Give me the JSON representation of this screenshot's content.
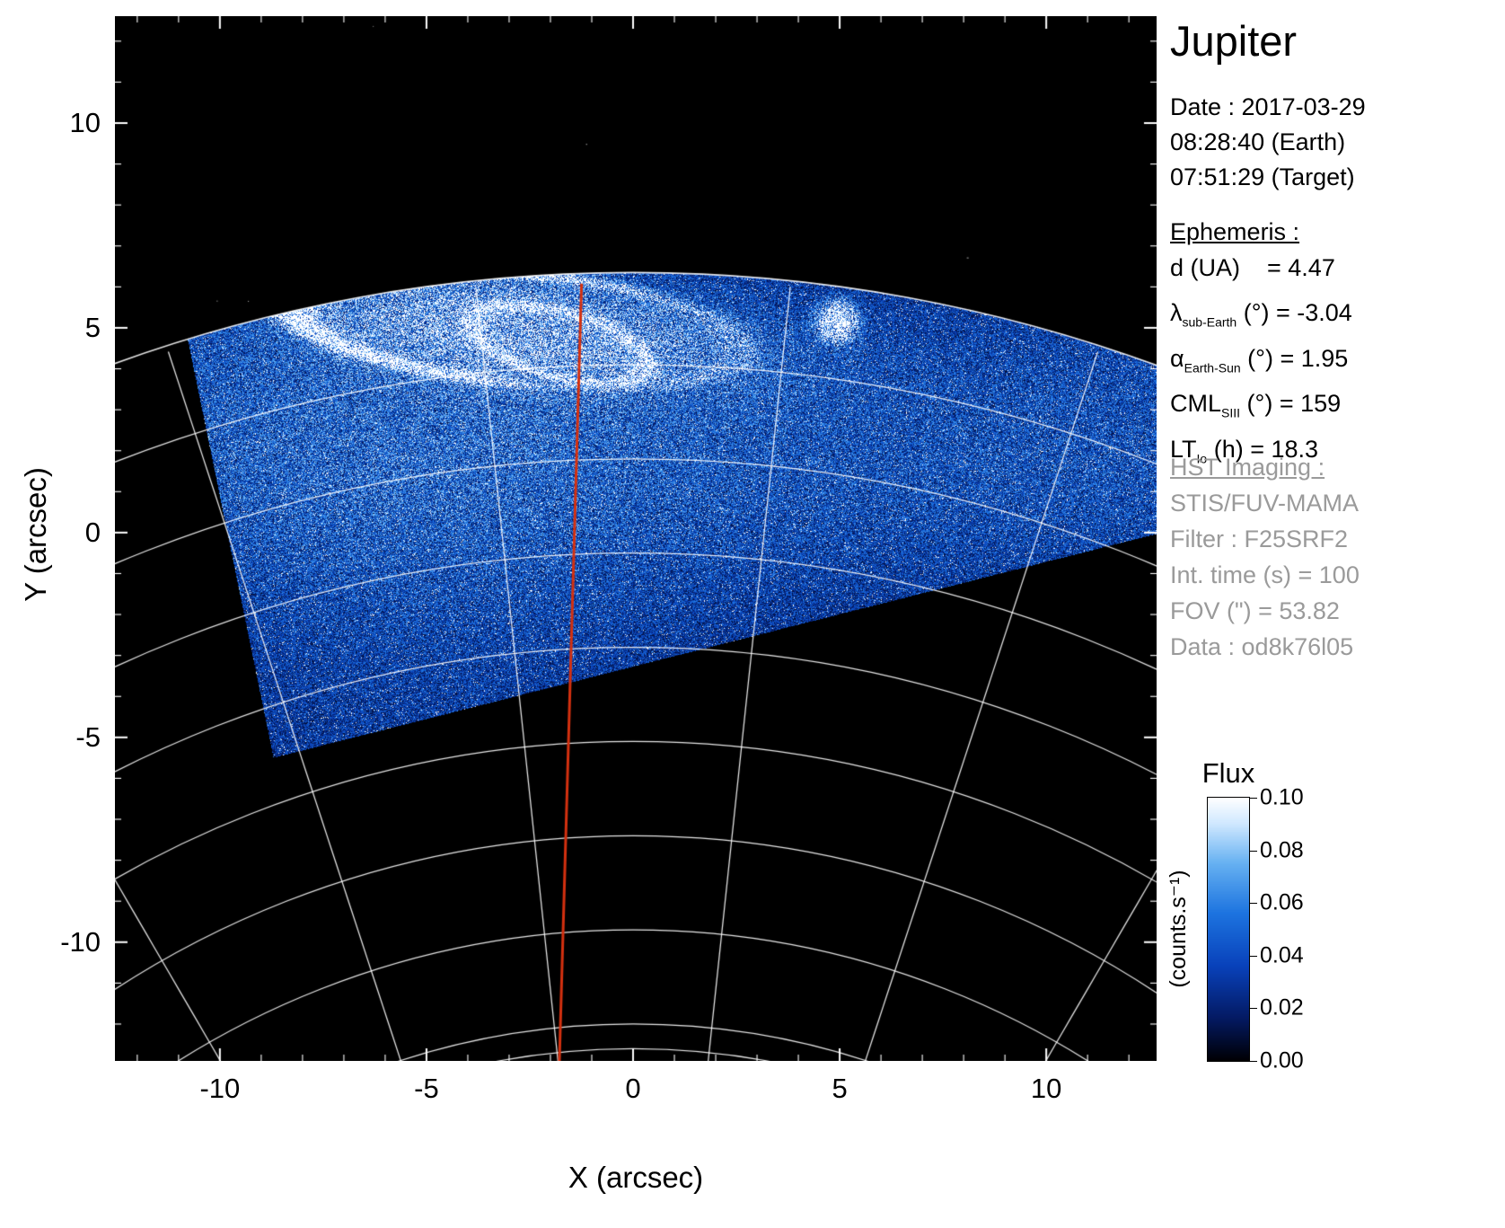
{
  "title": "Jupiter",
  "info_panel": {
    "date": "Date : 2017-03-29",
    "time_earth": "08:28:40 (Earth)",
    "time_target": "07:51:29 (Target)",
    "ephemeris_heading": "Ephemeris :",
    "ephemeris": [
      {
        "pre": "d (UA)",
        "sub": "",
        "post": "    = 4.47"
      },
      {
        "pre": "λ",
        "sub": "sub-Earth",
        "post": " (°) = -3.04"
      },
      {
        "pre": "α",
        "sub": "Earth-Sun",
        "post": " (°) = 1.95"
      },
      {
        "pre": "CML",
        "sub": "SIII",
        "post": " (°) = 159"
      },
      {
        "pre": "LT",
        "sub": "Io",
        "post": " (h) = 18.3"
      }
    ],
    "hst_heading": "HST Imaging :",
    "hst_lines": [
      "STIS/FUV-MAMA",
      "Filter : F25SRF2",
      "Int. time (s) = 100",
      "FOV (\") = 53.82",
      "Data : od8k76l05"
    ]
  },
  "chart_data": {
    "type": "heatmap",
    "title": "Jupiter",
    "xlabel": "X (arcsec)",
    "ylabel": "Y (arcsec)",
    "xlim": [
      -12.54,
      12.67
    ],
    "ylim": [
      -12.9,
      12.61
    ],
    "xticks": [
      -10,
      -5,
      0,
      5,
      10
    ],
    "yticks": [
      -10,
      -5,
      0,
      5,
      10
    ],
    "grid": false,
    "colorbar": {
      "title": "Flux",
      "units": "(counts.s⁻¹)",
      "ticks": [
        "0.10",
        "0.08",
        "0.06",
        "0.04",
        "0.02",
        "0.00"
      ],
      "vmin": 0.0,
      "vmax": 0.1,
      "stops": [
        [
          0,
          "#000005"
        ],
        [
          0.16,
          "#041a63"
        ],
        [
          0.36,
          "#0942bb"
        ],
        [
          0.56,
          "#1d74e0"
        ],
        [
          0.75,
          "#66b1f2"
        ],
        [
          0.9,
          "#cfe8ff"
        ],
        [
          1,
          "#ffffff"
        ]
      ]
    },
    "image": {
      "description": "HST/STIS far-UV image of Jupiter's north polar aurora: blue speckled FUV dayglow over the disk inside the STIS field of view, saturated white auroral oval near the limb with an Io footprint spot, white planetocentric lat/lon graticule, red central meridian (CML = 159°).",
      "seed": 20170329,
      "disk_center_arcsec": [
        0,
        -30.2
      ],
      "disk_radius_arcsec": 36.55,
      "lat_radii": [
        36.55,
        34.3,
        32.0,
        29.7,
        27.4,
        25.1,
        22.8,
        20.5,
        18.2,
        17.6
      ],
      "meridian_angles_deg": [
        -66,
        -54,
        -42,
        -30,
        -18,
        -6,
        6,
        18,
        30,
        42,
        54,
        66
      ],
      "meridian_rmin": 16.8,
      "fov_left_edge": [
        [
          -11.2,
          6.8
        ],
        [
          -8.7,
          -5.5
        ]
      ],
      "fov_bottom_edge": [
        [
          -8.7,
          -5.5
        ],
        [
          12.8,
          0.0
        ]
      ],
      "cml": {
        "x_top": -1.24,
        "x_bottom": -1.8,
        "color": "#d4300f"
      },
      "aurora": {
        "oval_center": [
          -2.8,
          5.0
        ],
        "a": 5.5,
        "b": 1.35,
        "rot_deg": -6,
        "inner_oval": {
          "center": [
            -1.8,
            4.6
          ],
          "a": 2.2,
          "b": 0.8,
          "rot_deg": -15
        },
        "footprint": [
          4.95,
          5.15
        ]
      }
    }
  },
  "colors": {
    "page": "#ffffff",
    "plot_bg": "#000000",
    "graticule": "#ffffff",
    "cml": "#d4300f",
    "muted_text": "#9a9a9a"
  }
}
